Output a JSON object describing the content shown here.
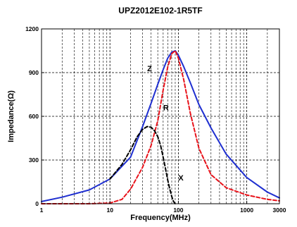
{
  "chart_data": {
    "type": "line",
    "title": "UPZ2012E102-1R5TF",
    "xlabel": "Frequency(MHz)",
    "ylabel": "Impedance(Ω)",
    "xscale": "log",
    "xlim": [
      1,
      3000
    ],
    "ylim": [
      0,
      1200
    ],
    "x_ticks": [
      1,
      10,
      100,
      1000,
      3000
    ],
    "x_tick_labels": [
      "1",
      "10",
      "100",
      "1000",
      "3000"
    ],
    "y_ticks": [
      0,
      300,
      600,
      900,
      1200
    ],
    "y_tick_labels": [
      "0",
      "300",
      "600",
      "900",
      "1200"
    ],
    "grid": true,
    "series": [
      {
        "name": "Z",
        "color": "#1f2fd0",
        "style": "solid",
        "x": [
          1,
          2,
          5,
          10,
          20,
          30,
          40,
          50,
          60,
          70,
          80,
          90,
          100,
          120,
          150,
          200,
          300,
          500,
          1000,
          2000,
          3000
        ],
        "y": [
          15,
          45,
          95,
          170,
          320,
          530,
          690,
          820,
          920,
          1000,
          1040,
          1050,
          1020,
          940,
          830,
          680,
          520,
          340,
          180,
          80,
          40
        ]
      },
      {
        "name": "R",
        "color": "#e8121a",
        "style": "dashed-solid",
        "x": [
          1,
          5,
          10,
          15,
          20,
          30,
          40,
          50,
          60,
          70,
          80,
          90,
          100,
          120,
          150,
          200,
          300,
          500,
          1000,
          2000,
          3000
        ],
        "y": [
          0,
          0,
          5,
          30,
          100,
          250,
          400,
          570,
          780,
          940,
          1030,
          1050,
          1000,
          850,
          620,
          380,
          200,
          110,
          60,
          30,
          20
        ]
      },
      {
        "name": "X",
        "color": "#000000",
        "style": "dashed",
        "x": [
          10,
          15,
          20,
          25,
          30,
          35,
          40,
          45,
          50,
          55,
          60,
          65,
          70,
          75,
          80,
          85,
          90
        ],
        "y": [
          170,
          270,
          370,
          460,
          510,
          530,
          525,
          500,
          460,
          400,
          320,
          240,
          160,
          100,
          50,
          15,
          0
        ]
      }
    ]
  }
}
